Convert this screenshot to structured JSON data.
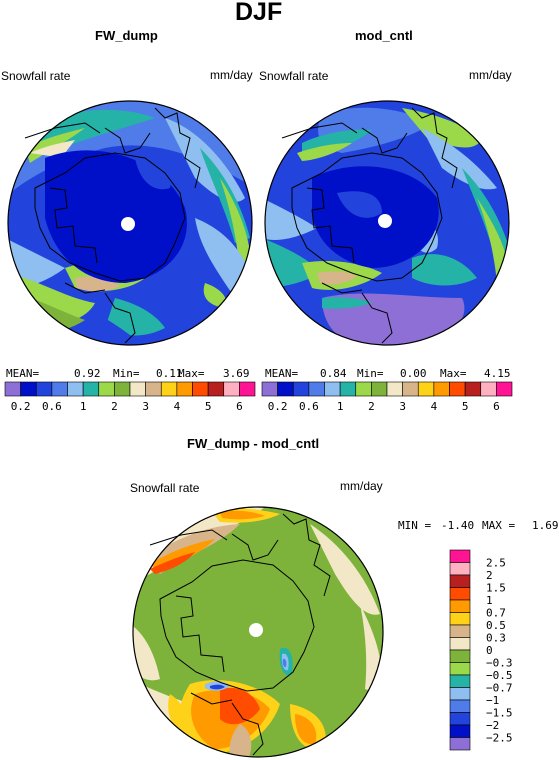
{
  "figure": {
    "title": "DJF"
  },
  "chart_data": [
    {
      "type": "heatmap",
      "projection": "polar-stereographic",
      "title": "FW_dump",
      "left_label": "Snowfall rate",
      "units": "mm/day",
      "stats": {
        "mean_label": "MEAN=",
        "mean": "0.92",
        "min_label": "Min=",
        "min": "0.11",
        "max_label": "Max=",
        "max": "3.69"
      },
      "levels": [
        0.2,
        0.4,
        0.6,
        0.8,
        1,
        1.5,
        2,
        2.5,
        3,
        3.5,
        4,
        4.5,
        5,
        5.5,
        6
      ],
      "tick_labels": [
        "0.2",
        "0.6",
        "1",
        "2",
        "3",
        "4",
        "5",
        "6"
      ],
      "colors": [
        "#8e6fd6",
        "#0010c8",
        "#2244dd",
        "#4f7ce8",
        "#8fbef0",
        "#24b3a6",
        "#9bd84a",
        "#7db33b",
        "#f2e7c6",
        "#d8b48a",
        "#ffd21a",
        "#ff9a00",
        "#ff4c00",
        "#b82020",
        "#ffb0c0",
        "#ff1493"
      ]
    },
    {
      "type": "heatmap",
      "projection": "polar-stereographic",
      "title": "mod_cntl",
      "left_label": "Snowfall rate",
      "units": "mm/day",
      "stats": {
        "mean_label": "MEAN=",
        "mean": "0.84",
        "min_label": "Min=",
        "min": "0.00",
        "max_label": "Max=",
        "max": "4.15"
      },
      "levels": [
        0.2,
        0.4,
        0.6,
        0.8,
        1,
        1.5,
        2,
        2.5,
        3,
        3.5,
        4,
        4.5,
        5,
        5.5,
        6
      ],
      "tick_labels": [
        "0.2",
        "0.6",
        "1",
        "2",
        "3",
        "4",
        "5",
        "6"
      ],
      "colors": [
        "#8e6fd6",
        "#0010c8",
        "#2244dd",
        "#4f7ce8",
        "#8fbef0",
        "#24b3a6",
        "#9bd84a",
        "#7db33b",
        "#f2e7c6",
        "#d8b48a",
        "#ffd21a",
        "#ff9a00",
        "#ff4c00",
        "#b82020",
        "#ffb0c0",
        "#ff1493"
      ]
    },
    {
      "type": "heatmap",
      "projection": "polar-stereographic",
      "title": "FW_dump - mod_cntl",
      "left_label": "Snowfall rate",
      "units": "mm/day",
      "stats": {
        "min_label": "MIN =",
        "min": "-1.40",
        "max_label": "MAX =",
        "max": "1.69"
      },
      "levels": [
        2.5,
        2,
        1.5,
        1,
        0.7,
        0.5,
        0.3,
        0,
        -0.3,
        -0.5,
        -0.7,
        -1,
        -1.5,
        -2,
        -2.5
      ],
      "tick_labels": [
        "2.5",
        "2",
        "1.5",
        "1",
        "0.7",
        "0.5",
        "0.3",
        "0",
        "−0.3",
        "−0.5",
        "−0.7",
        "−1",
        "−1.5",
        "−2",
        "−2.5"
      ],
      "colors": [
        "#ff1493",
        "#ffb0c0",
        "#b82020",
        "#ff4c00",
        "#ff9a00",
        "#ffd21a",
        "#d8b48a",
        "#f2e7c6",
        "#7db33b",
        "#9bd84a",
        "#24b3a6",
        "#8fbef0",
        "#4f7ce8",
        "#2244dd",
        "#0010c8",
        "#8e6fd6"
      ]
    }
  ]
}
